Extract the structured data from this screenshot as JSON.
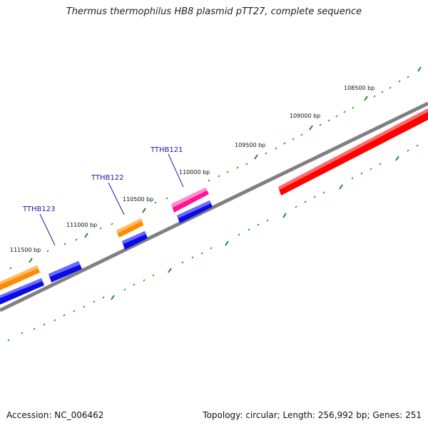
{
  "title": "Thermus thermophilus HB8 plasmid pTT27, complete sequence",
  "footer": {
    "accession": "Accession: NC_006462",
    "topology": "Topology: circular; Length: 256,992 bp; Genes: 251"
  },
  "bp_labels": [
    {
      "text": "108500 bp"
    },
    {
      "text": "109000 bp"
    },
    {
      "text": "109500 bp"
    },
    {
      "text": "110000 bp"
    },
    {
      "text": "110500 bp"
    },
    {
      "text": "111000 bp"
    },
    {
      "text": "111500 bp"
    }
  ],
  "gene_labels": [
    {
      "text": "TTHB121"
    },
    {
      "text": "TTHB122"
    },
    {
      "text": "TTHB123"
    }
  ],
  "colors": {
    "backbone": "#808080",
    "tick": "#1e8a1e",
    "cds_blue": "#0a0ae6",
    "orange": "#ff8c00",
    "pink": "#ff1493",
    "red": "#ff0000",
    "gene_label": "#1a1ab0"
  }
}
